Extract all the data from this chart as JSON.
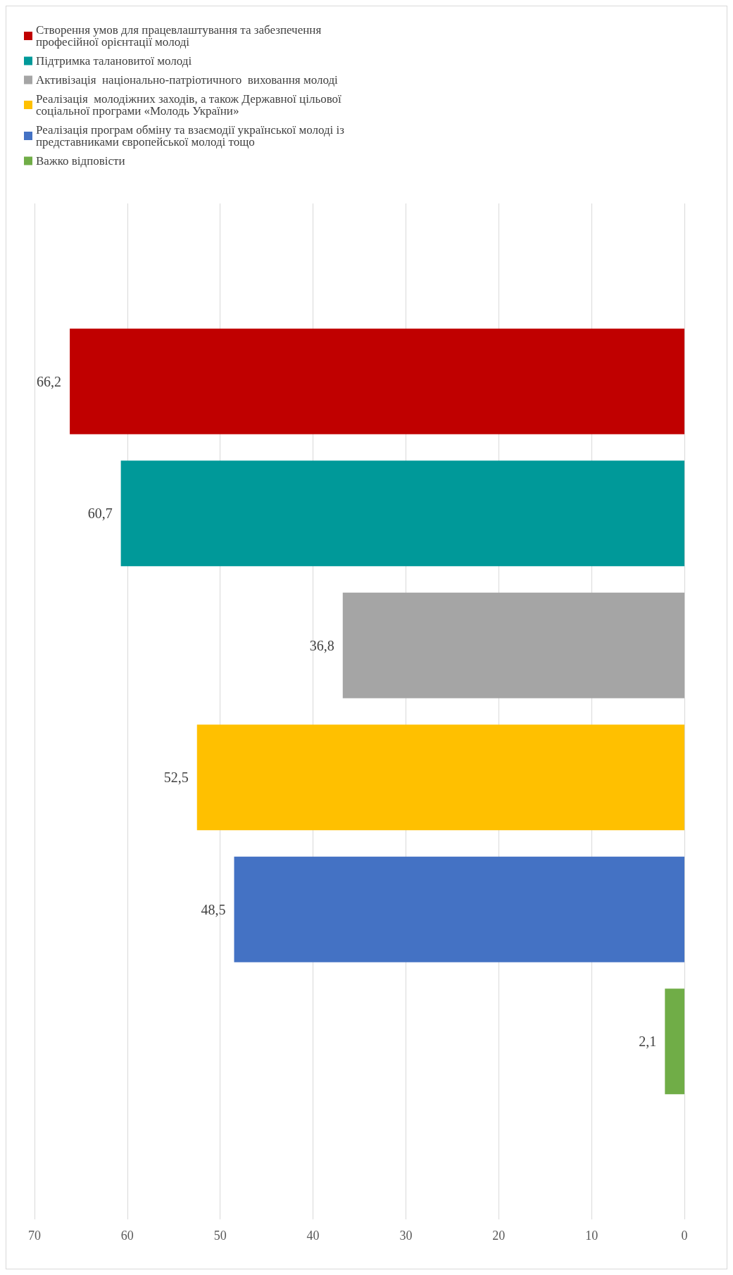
{
  "chart_data": {
    "type": "bar",
    "categories": [
      null
    ],
    "series": [
      {
        "name": "Створення умов для працевлаштування та забезпечення професійної орієнтації молоді",
        "color": "#c00000",
        "values": [
          66.2
        ],
        "value_labels": [
          "66,2"
        ]
      },
      {
        "name": "Підтримка талановитої молоді",
        "color": "#009999",
        "values": [
          60.7
        ],
        "value_labels": [
          "60,7"
        ]
      },
      {
        "name": "Активізація  національно-патріотичного  виховання молоді",
        "color": "#a5a5a5",
        "values": [
          36.8
        ],
        "value_labels": [
          "36,8"
        ]
      },
      {
        "name": "Реалізація  молодіжних заходів, а також Державної цільової соціальної програми «Молодь України»",
        "color": "#ffc000",
        "values": [
          52.5
        ],
        "value_labels": [
          "52,5"
        ]
      },
      {
        "name": "Реалізація програм обміну та взаємодії української молоді із представниками європейської молоді тощо",
        "color": "#4472c4",
        "values": [
          48.5
        ],
        "value_labels": [
          "48,5"
        ]
      },
      {
        "name": "Важко відповісти",
        "color": "#70ad47",
        "values": [
          2.1
        ],
        "value_labels": [
          "2,1"
        ]
      }
    ],
    "orientation": "horizontal",
    "xlim": [
      70,
      0
    ],
    "xticks": [
      0,
      10,
      20,
      30,
      40,
      50,
      60,
      70
    ],
    "grid": "x",
    "legend": "top"
  }
}
